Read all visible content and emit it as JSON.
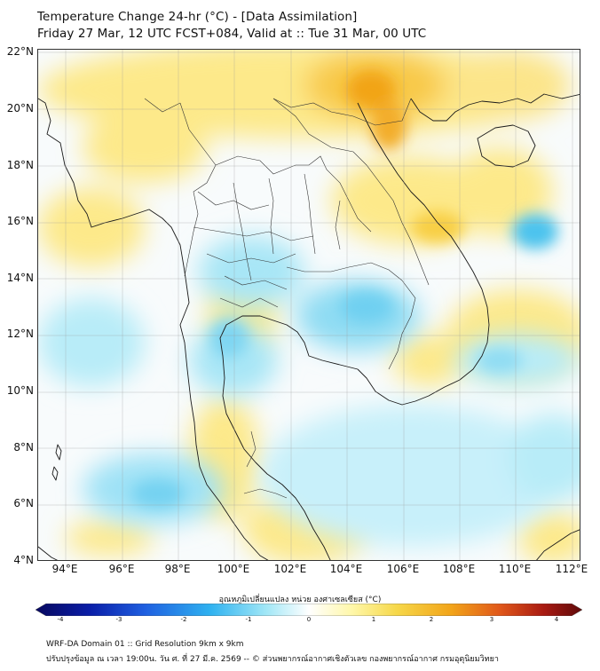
{
  "title": {
    "line1": "Temperature Change 24-hr (°C) - [Data Assimilation]",
    "line2": "Friday 27 Mar, 12 UTC FCST+084, Valid at :: Tue 31 Mar, 00 UTC"
  },
  "map": {
    "lat_labels": [
      "22°N",
      "20°N",
      "18°N",
      "16°N",
      "14°N",
      "12°N",
      "10°N",
      "8°N",
      "6°N",
      "4°N"
    ],
    "lon_labels": [
      "94°E",
      "96°E",
      "98°E",
      "100°E",
      "102°E",
      "104°E",
      "106°E",
      "108°E",
      "110°E",
      "112°E"
    ],
    "lat_range": [
      4,
      22
    ],
    "lon_range": [
      93,
      112.3
    ]
  },
  "colorbar": {
    "title": "อุณหภูมิเปลี่ยนแปลง หน่วย องศาเซลเซียส (°C)",
    "ticks": [
      "-4",
      "-3",
      "-2",
      "-1",
      "0",
      "1",
      "2",
      "3",
      "4"
    ],
    "min": -4,
    "max": 4,
    "colors": [
      "#08085e",
      "#0a1ea8",
      "#1f5fe0",
      "#2fb2f0",
      "#9fe6f6",
      "#ffffff",
      "#fff7a8",
      "#f6d84a",
      "#f2a419",
      "#e0571a",
      "#a81a12",
      "#5e0a0a"
    ]
  },
  "footer": {
    "line1": "WRF-DA Domain 01 :: Grid Resolution 9km x 9km",
    "line2": "ปรับปรุงข้อมูล ณ เวลา 19:00น. วัน ศ. ที่ 27 มี.ค. 2569 -- © ส่วนพยากรณ์อากาศเชิงตัวเลข กองพยากรณ์อากาศ กรมอุตุนิยมวิทยา"
  }
}
